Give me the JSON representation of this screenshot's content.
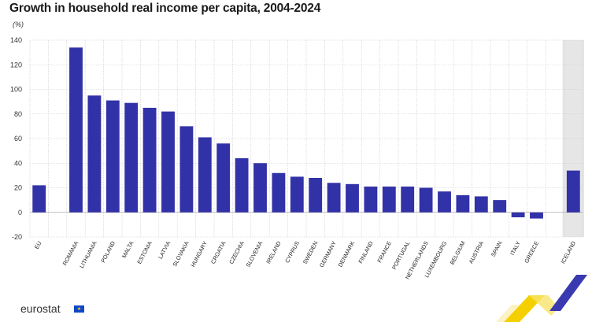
{
  "title": "Growth in household real income per capita, 2004-2024",
  "unit_label": "(%)",
  "footer": {
    "brand": "eurostat",
    "brand_icon": "eu-flag-icon"
  },
  "colors": {
    "bar": "#3232a8",
    "grid": "#c8c8c8",
    "highlight_bg": "#e6e6e6"
  },
  "chart_data": {
    "type": "bar",
    "title": "Growth in household real income per capita, 2004-2024",
    "ylabel": "(%)",
    "xlabel": "",
    "ylim": [
      -20,
      140
    ],
    "yticks": [
      140,
      120,
      100,
      80,
      60,
      40,
      20,
      0,
      -20
    ],
    "grid": true,
    "categories": [
      "EU",
      "",
      "Romania",
      "Lithuania",
      "Poland",
      "Malta",
      "Estonia",
      "Latvia",
      "Slovakia",
      "Hungary",
      "Croatia",
      "Czechia",
      "Slovenia",
      "Ireland",
      "Cyprus",
      "Sweden",
      "Germany",
      "Denmark",
      "Finland",
      "France",
      "Portugal",
      "Netherlands",
      "Luxembourg",
      "Belgium",
      "Austria",
      "Spain",
      "Italy",
      "Greece",
      "",
      "Iceland"
    ],
    "values": [
      22,
      null,
      134,
      95,
      91,
      89,
      85,
      82,
      70,
      61,
      56,
      44,
      40,
      32,
      29,
      28,
      24,
      23,
      21,
      21,
      21,
      20,
      17,
      14,
      13,
      10,
      -4,
      -5,
      null,
      34
    ],
    "highlighted_categories": [
      "Iceland"
    ]
  }
}
